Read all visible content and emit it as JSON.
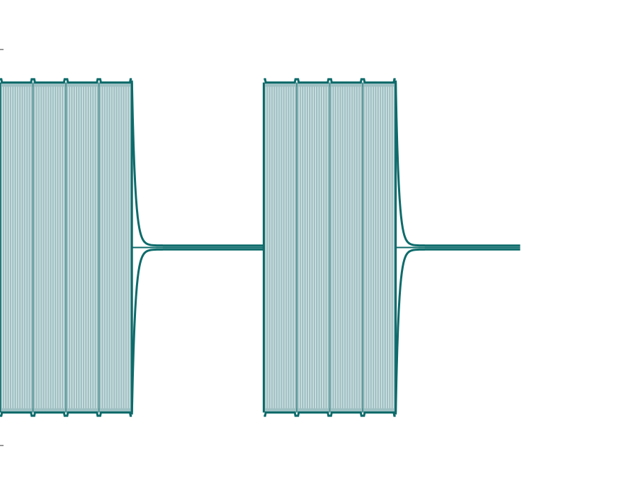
{
  "chart_data": {
    "type": "line",
    "title": "",
    "xlabel": "",
    "ylabel": "",
    "grid": false,
    "legend": "none",
    "xlim": [
      0,
      12.15
    ],
    "ylim": [
      -1.5,
      1.5
    ],
    "y_ticks": [
      -1.2,
      1.2
    ],
    "series": [
      {
        "color": "#0e6b6b",
        "fill_color": "#9fc0c3",
        "segments": [
          {
            "kind": "burst",
            "x_start": 0.0,
            "x_end": 2.5,
            "amplitude": 1.0,
            "lobes": 4,
            "cycles": 56
          },
          {
            "kind": "settle",
            "x_start": 2.5,
            "x_end": 5.0,
            "level": 0.0
          },
          {
            "kind": "burst",
            "x_start": 5.0,
            "x_end": 7.5,
            "amplitude": 1.0,
            "lobes": 4,
            "cycles": 56
          },
          {
            "kind": "settle",
            "x_start": 7.5,
            "x_end": 9.86,
            "level": 0.0
          }
        ]
      }
    ]
  }
}
